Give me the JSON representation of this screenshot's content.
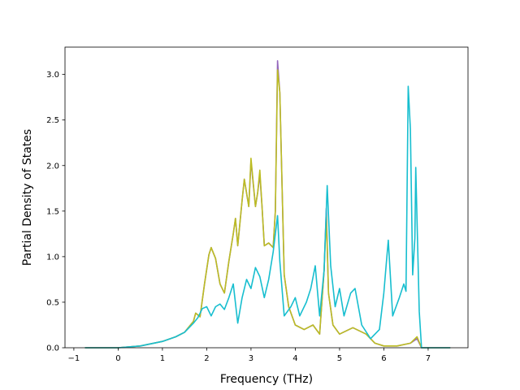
{
  "chart_data": {
    "type": "line",
    "title": "",
    "xlabel": "Frequency (THz)",
    "ylabel": "Partial Density of States",
    "xlim": [
      -1.2,
      7.9
    ],
    "ylim": [
      0,
      3.3
    ],
    "x_ticks": [
      "−1",
      "0",
      "1",
      "2",
      "3",
      "4",
      "5",
      "6",
      "7"
    ],
    "x_tick_values": [
      -1,
      0,
      1,
      2,
      3,
      4,
      5,
      6,
      7
    ],
    "y_ticks": [
      "0.0",
      "0.5",
      "1.0",
      "1.5",
      "2.0",
      "2.5",
      "3.0"
    ],
    "y_tick_values": [
      0,
      0.5,
      1.0,
      1.5,
      2.0,
      2.5,
      3.0
    ],
    "grid": false,
    "legend": "none",
    "series": [
      {
        "color": "#9467bd",
        "points": [
          [
            -0.75,
            0
          ],
          [
            0,
            0
          ],
          [
            0.5,
            0.02
          ],
          [
            1.0,
            0.07
          ],
          [
            1.3,
            0.12
          ],
          [
            1.5,
            0.17
          ],
          [
            1.7,
            0.29
          ],
          [
            1.75,
            0.38
          ],
          [
            1.85,
            0.34
          ],
          [
            1.95,
            0.7
          ],
          [
            2.05,
            1.02
          ],
          [
            2.1,
            1.1
          ],
          [
            2.2,
            0.98
          ],
          [
            2.3,
            0.7
          ],
          [
            2.4,
            0.6
          ],
          [
            2.5,
            0.95
          ],
          [
            2.6,
            1.25
          ],
          [
            2.65,
            1.42
          ],
          [
            2.7,
            1.12
          ],
          [
            2.8,
            1.62
          ],
          [
            2.85,
            1.85
          ],
          [
            2.95,
            1.55
          ],
          [
            3.0,
            2.05
          ],
          [
            3.1,
            1.55
          ],
          [
            3.15,
            1.7
          ],
          [
            3.2,
            1.9
          ],
          [
            3.25,
            1.55
          ],
          [
            3.3,
            1.12
          ],
          [
            3.4,
            1.15
          ],
          [
            3.5,
            1.1
          ],
          [
            3.55,
            1.5
          ],
          [
            3.6,
            3.15
          ],
          [
            3.65,
            2.8
          ],
          [
            3.75,
            0.8
          ],
          [
            3.85,
            0.45
          ],
          [
            4.0,
            0.25
          ],
          [
            4.2,
            0.2
          ],
          [
            4.4,
            0.25
          ],
          [
            4.55,
            0.15
          ],
          [
            4.65,
            0.85
          ],
          [
            4.7,
            1.53
          ],
          [
            4.75,
            0.6
          ],
          [
            4.85,
            0.25
          ],
          [
            5.0,
            0.15
          ],
          [
            5.3,
            0.22
          ],
          [
            5.6,
            0.15
          ],
          [
            5.8,
            0.05
          ],
          [
            6.0,
            0.02
          ],
          [
            6.3,
            0.02
          ],
          [
            6.6,
            0.05
          ],
          [
            6.75,
            0.1
          ],
          [
            6.85,
            0
          ],
          [
            7.5,
            0
          ]
        ]
      },
      {
        "color": "#bcbd22",
        "points": [
          [
            -0.75,
            0
          ],
          [
            0,
            0
          ],
          [
            0.5,
            0.02
          ],
          [
            1.0,
            0.07
          ],
          [
            1.3,
            0.12
          ],
          [
            1.5,
            0.17
          ],
          [
            1.7,
            0.29
          ],
          [
            1.75,
            0.38
          ],
          [
            1.85,
            0.34
          ],
          [
            1.95,
            0.7
          ],
          [
            2.05,
            1.02
          ],
          [
            2.1,
            1.1
          ],
          [
            2.2,
            0.98
          ],
          [
            2.3,
            0.7
          ],
          [
            2.4,
            0.6
          ],
          [
            2.5,
            0.95
          ],
          [
            2.6,
            1.25
          ],
          [
            2.65,
            1.42
          ],
          [
            2.7,
            1.12
          ],
          [
            2.8,
            1.62
          ],
          [
            2.85,
            1.85
          ],
          [
            2.95,
            1.55
          ],
          [
            3.0,
            2.08
          ],
          [
            3.1,
            1.55
          ],
          [
            3.15,
            1.7
          ],
          [
            3.2,
            1.95
          ],
          [
            3.25,
            1.55
          ],
          [
            3.3,
            1.12
          ],
          [
            3.4,
            1.15
          ],
          [
            3.5,
            1.1
          ],
          [
            3.55,
            1.5
          ],
          [
            3.6,
            3.05
          ],
          [
            3.65,
            2.8
          ],
          [
            3.75,
            0.8
          ],
          [
            3.85,
            0.45
          ],
          [
            4.0,
            0.25
          ],
          [
            4.2,
            0.2
          ],
          [
            4.4,
            0.25
          ],
          [
            4.55,
            0.15
          ],
          [
            4.65,
            0.85
          ],
          [
            4.7,
            1.45
          ],
          [
            4.75,
            0.6
          ],
          [
            4.85,
            0.25
          ],
          [
            5.0,
            0.15
          ],
          [
            5.3,
            0.22
          ],
          [
            5.6,
            0.15
          ],
          [
            5.8,
            0.05
          ],
          [
            6.0,
            0.02
          ],
          [
            6.3,
            0.02
          ],
          [
            6.6,
            0.05
          ],
          [
            6.75,
            0.12
          ],
          [
            6.85,
            0
          ],
          [
            7.5,
            0
          ]
        ]
      },
      {
        "color": "#17becf",
        "points": [
          [
            -0.75,
            0
          ],
          [
            0,
            0
          ],
          [
            0.5,
            0.02
          ],
          [
            1.0,
            0.07
          ],
          [
            1.3,
            0.12
          ],
          [
            1.5,
            0.17
          ],
          [
            1.7,
            0.27
          ],
          [
            1.8,
            0.33
          ],
          [
            1.9,
            0.43
          ],
          [
            2.0,
            0.45
          ],
          [
            2.1,
            0.35
          ],
          [
            2.2,
            0.45
          ],
          [
            2.3,
            0.48
          ],
          [
            2.4,
            0.42
          ],
          [
            2.5,
            0.55
          ],
          [
            2.6,
            0.7
          ],
          [
            2.7,
            0.27
          ],
          [
            2.8,
            0.55
          ],
          [
            2.9,
            0.75
          ],
          [
            3.0,
            0.65
          ],
          [
            3.1,
            0.88
          ],
          [
            3.2,
            0.78
          ],
          [
            3.3,
            0.55
          ],
          [
            3.4,
            0.75
          ],
          [
            3.5,
            1.05
          ],
          [
            3.6,
            1.45
          ],
          [
            3.65,
            0.95
          ],
          [
            3.75,
            0.35
          ],
          [
            3.9,
            0.45
          ],
          [
            4.0,
            0.55
          ],
          [
            4.1,
            0.35
          ],
          [
            4.25,
            0.5
          ],
          [
            4.35,
            0.65
          ],
          [
            4.45,
            0.9
          ],
          [
            4.55,
            0.35
          ],
          [
            4.65,
            0.85
          ],
          [
            4.72,
            1.78
          ],
          [
            4.8,
            0.9
          ],
          [
            4.9,
            0.45
          ],
          [
            5.0,
            0.65
          ],
          [
            5.1,
            0.35
          ],
          [
            5.25,
            0.6
          ],
          [
            5.35,
            0.65
          ],
          [
            5.5,
            0.25
          ],
          [
            5.7,
            0.1
          ],
          [
            5.9,
            0.2
          ],
          [
            6.0,
            0.6
          ],
          [
            6.05,
            0.9
          ],
          [
            6.1,
            1.18
          ],
          [
            6.2,
            0.35
          ],
          [
            6.35,
            0.55
          ],
          [
            6.45,
            0.7
          ],
          [
            6.5,
            0.62
          ],
          [
            6.55,
            2.87
          ],
          [
            6.6,
            2.4
          ],
          [
            6.65,
            0.8
          ],
          [
            6.7,
            1.2
          ],
          [
            6.72,
            1.98
          ],
          [
            6.8,
            0.4
          ],
          [
            6.85,
            0
          ],
          [
            7.5,
            0
          ]
        ]
      }
    ]
  }
}
